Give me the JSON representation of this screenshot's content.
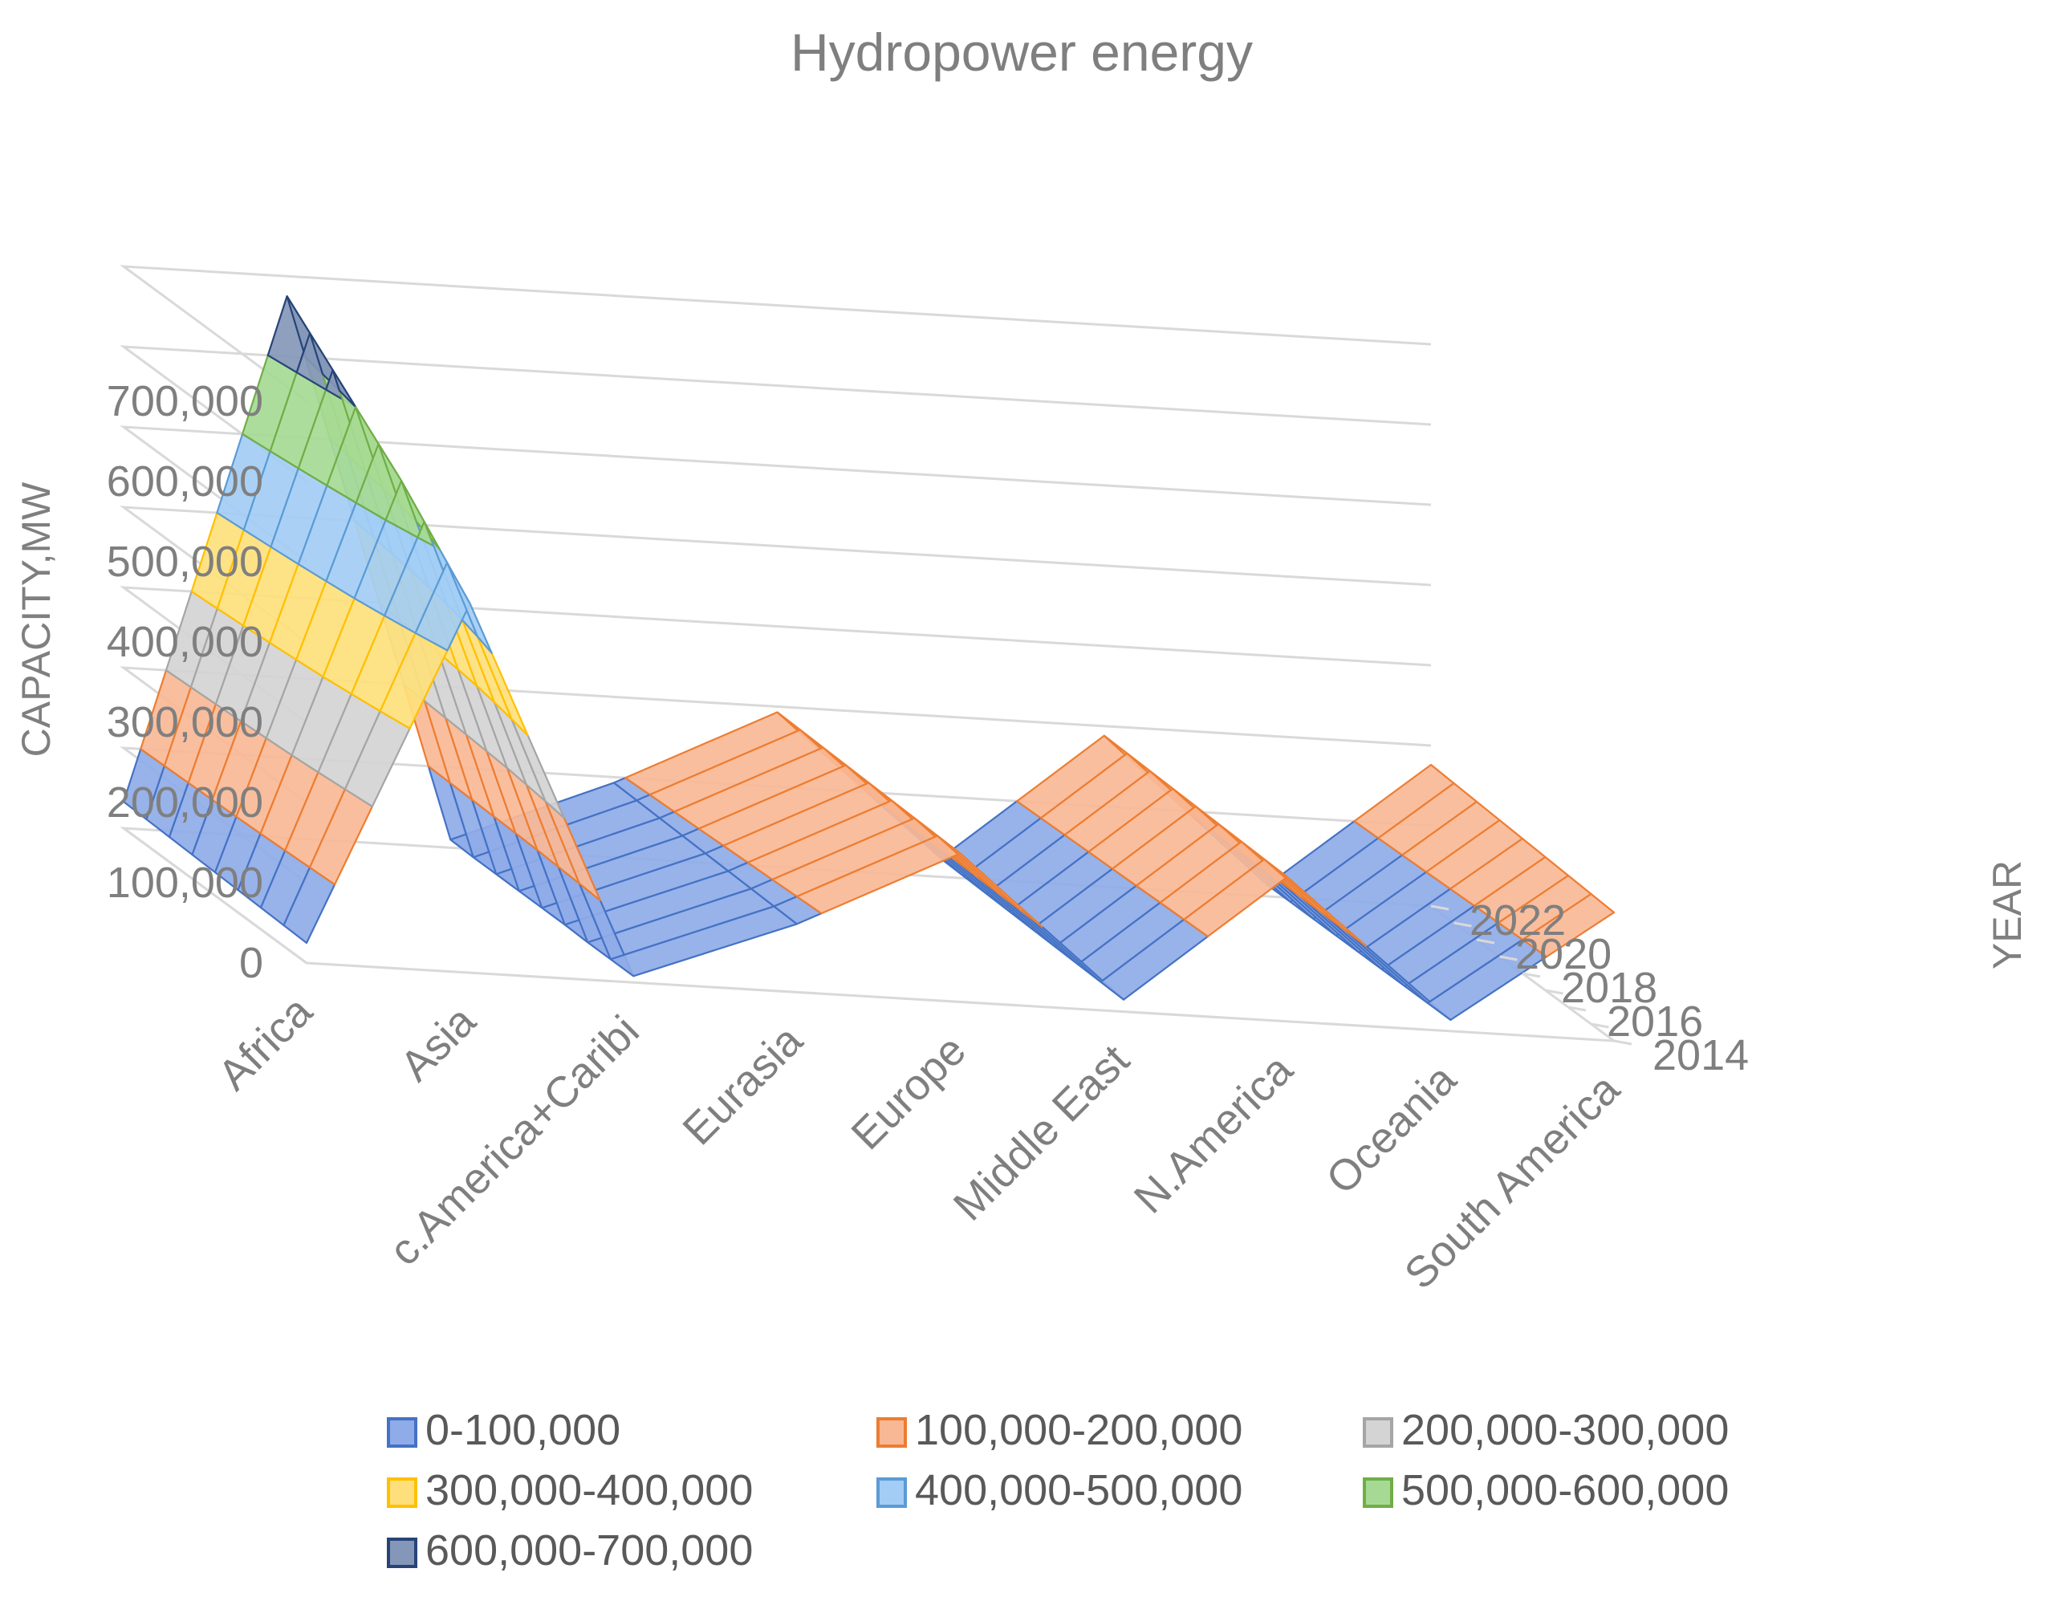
{
  "chart_data": {
    "type": "surface",
    "title": "Hydropower  energy",
    "zlabel": "CAPACITY,MW",
    "ylabel": "YEAR",
    "zlim": [
      0,
      700000
    ],
    "z_ticks": [
      "0",
      "100,000",
      "200,000",
      "300,000",
      "400,000",
      "500,000",
      "600,000",
      "700,000"
    ],
    "categories": [
      "Africa",
      "Asia",
      "c.America+Caribi",
      "Eurasia",
      "Europe",
      "Middle East",
      "N.America",
      "Oceania",
      "South America"
    ],
    "years": [
      2014,
      2015,
      2016,
      2017,
      2018,
      2019,
      2020,
      2021,
      2022
    ],
    "year_tick_labels": [
      "2014",
      "2016",
      "2018",
      "2020",
      "2022"
    ],
    "series": [
      {
        "name": "2014",
        "values": [
          25000,
          460000,
          8000,
          85000,
          185000,
          15000,
          180000,
          14000,
          160000
        ]
      },
      {
        "name": "2015",
        "values": [
          26000,
          490000,
          8000,
          86000,
          186000,
          16000,
          181000,
          14000,
          162000
        ]
      },
      {
        "name": "2016",
        "values": [
          27000,
          520000,
          8000,
          87000,
          187000,
          17000,
          182000,
          14000,
          164000
        ]
      },
      {
        "name": "2017",
        "values": [
          28000,
          550000,
          9000,
          88000,
          188000,
          18000,
          183000,
          14000,
          166000
        ]
      },
      {
        "name": "2018",
        "values": [
          29000,
          575000,
          9000,
          89000,
          189000,
          19000,
          184000,
          14000,
          168000
        ]
      },
      {
        "name": "2019",
        "values": [
          30000,
          600000,
          9000,
          90000,
          190000,
          20000,
          185000,
          14000,
          170000
        ]
      },
      {
        "name": "2020",
        "values": [
          31000,
          625000,
          9000,
          91000,
          191000,
          21000,
          186000,
          14000,
          172000
        ]
      },
      {
        "name": "2021",
        "values": [
          32000,
          650000,
          9000,
          92000,
          192000,
          22000,
          187000,
          14000,
          174000
        ]
      },
      {
        "name": "2022",
        "values": [
          33000,
          675000,
          10000,
          93000,
          193000,
          23000,
          188000,
          14000,
          176000
        ]
      }
    ],
    "bands": [
      {
        "label": "0-100,000",
        "min": 0,
        "max": 100000,
        "fill": "#8fabe8",
        "stroke": "#4472c4"
      },
      {
        "label": "100,000-200,000",
        "min": 100000,
        "max": 200000,
        "fill": "#f8b896",
        "stroke": "#ed7d31"
      },
      {
        "label": "200,000-300,000",
        "min": 200000,
        "max": 300000,
        "fill": "#d4d4d4",
        "stroke": "#a5a5a5"
      },
      {
        "label": "300,000-400,000",
        "min": 300000,
        "max": 400000,
        "fill": "#fedf7c",
        "stroke": "#ffc000"
      },
      {
        "label": "400,000-500,000",
        "min": 400000,
        "max": 500000,
        "fill": "#a3cdf4",
        "stroke": "#5b9bd5"
      },
      {
        "label": "500,000-600,000",
        "min": 500000,
        "max": 600000,
        "fill": "#a6da94",
        "stroke": "#70ad47"
      },
      {
        "label": "600,000-700,000",
        "min": 600000,
        "max": 700000,
        "fill": "#8597b8",
        "stroke": "#264478"
      }
    ],
    "legend_position": "bottom",
    "grid": true
  }
}
